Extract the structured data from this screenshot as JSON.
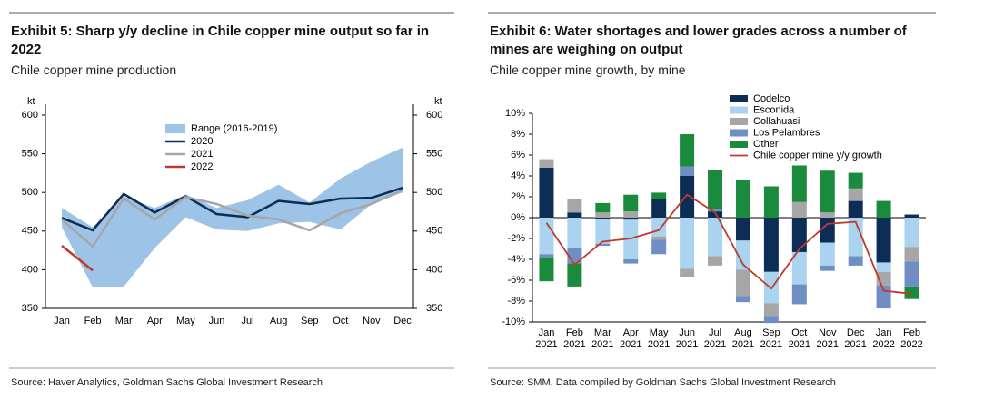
{
  "chart_data": [
    {
      "type": "line",
      "title": "Exhibit 5: Sharp y/y decline in Chile copper mine output so far in 2022",
      "subtitle": "Chile copper mine production",
      "source": "Source: Haver Analytics, Goldman Sachs Global Investment Research",
      "ylabel": "kt",
      "y2label": "kt",
      "categories": [
        "Jan",
        "Feb",
        "Mar",
        "Apr",
        "May",
        "Jun",
        "Jul",
        "Aug",
        "Sep",
        "Oct",
        "Nov",
        "Dec"
      ],
      "ylim": [
        350,
        600
      ],
      "yticks": [
        350,
        400,
        450,
        500,
        550,
        600
      ],
      "y2lim": [
        350,
        600
      ],
      "y2ticks": [
        350,
        400,
        450,
        500,
        550,
        600
      ],
      "range": {
        "name": "Range (2016-2019)",
        "color": "#9dc3e6",
        "high": [
          480,
          455,
          495,
          480,
          497,
          480,
          490,
          510,
          487,
          518,
          540,
          558
        ],
        "low": [
          455,
          377,
          378,
          428,
          468,
          452,
          450,
          460,
          462,
          452,
          485,
          500
        ]
      },
      "series": [
        {
          "name": "2020",
          "color": "#0b2d56",
          "values": [
            467,
            451,
            498,
            474,
            495,
            472,
            468,
            489,
            485,
            492,
            493,
            506
          ]
        },
        {
          "name": "2021",
          "color": "#a6a6a6",
          "values": [
            465,
            430,
            492,
            465,
            494,
            485,
            470,
            465,
            451,
            473,
            485,
            503
          ]
        },
        {
          "name": "2022",
          "color": "#c0392b",
          "values": [
            431,
            399,
            null,
            null,
            null,
            null,
            null,
            null,
            null,
            null,
            null,
            null
          ]
        }
      ]
    },
    {
      "type": "bar",
      "stacked": true,
      "title": "Exhibit 6: Water shortages and lower grades across a number of mines are weighing on output",
      "subtitle": "Chile copper mine growth, by mine",
      "source": "Source: SMM, Data compiled by Goldman Sachs Global Investment Research",
      "categories": [
        "Jan 2021",
        "Feb 2021",
        "Mar 2021",
        "Apr 2021",
        "May 2021",
        "Jun 2021",
        "Jul 2021",
        "Aug 2021",
        "Sep 2021",
        "Oct 2021",
        "Nov 2021",
        "Dec 2021",
        "Jan 2022",
        "Feb 2022"
      ],
      "ylim": [
        -10,
        10
      ],
      "yticks": [
        {
          "value": -10,
          "label": "-10%"
        },
        {
          "value": -8,
          "label": "-8%"
        },
        {
          "value": -6,
          "label": "-6%"
        },
        {
          "value": -4,
          "label": "-4%"
        },
        {
          "value": -2,
          "label": "-2%"
        },
        {
          "value": 0,
          "label": "0%"
        },
        {
          "value": 2,
          "label": "2%"
        },
        {
          "value": 4,
          "label": "4%"
        },
        {
          "value": 6,
          "label": "6%"
        },
        {
          "value": 8,
          "label": "8%"
        },
        {
          "value": 10,
          "label": "10%"
        }
      ],
      "series": [
        {
          "name": "Codelco",
          "color": "#0b2d56",
          "values": [
            4.8,
            0.5,
            -0.1,
            -0.2,
            1.8,
            4.0,
            0.6,
            -2.2,
            -5.2,
            -3.3,
            -2.4,
            1.6,
            -4.3,
            0.3
          ]
        },
        {
          "name": "Esconida",
          "color": "#a9d3ef",
          "values": [
            -3.5,
            -2.9,
            -2.4,
            -3.8,
            -1.8,
            -4.9,
            -3.7,
            -2.8,
            -3.0,
            -3.1,
            -2.2,
            -3.7,
            -0.9,
            -2.8
          ]
        },
        {
          "name": "Collahuasi",
          "color": "#a6a6a6",
          "values": [
            0.8,
            1.3,
            0.5,
            0.6,
            -0.3,
            -0.8,
            -0.9,
            -2.5,
            -1.3,
            1.5,
            0.5,
            1.2,
            -1.3,
            -1.4
          ]
        },
        {
          "name": "Los Pelambres",
          "color": "#6f8fc4",
          "values": [
            -0.3,
            -1.5,
            -0.2,
            -0.4,
            -1.4,
            0.9,
            0.2,
            -0.6,
            -0.6,
            -1.9,
            -0.5,
            -0.9,
            -2.2,
            -2.4
          ]
        },
        {
          "name": "Other",
          "color": "#1a8a3c",
          "values": [
            -2.3,
            -2.2,
            0.9,
            1.6,
            0.6,
            3.1,
            3.8,
            3.6,
            3.0,
            3.5,
            4.0,
            1.5,
            1.6,
            -1.2
          ]
        }
      ],
      "line": {
        "name": "Chile copper mine y/y growth",
        "color": "#c0392b",
        "values": [
          -0.5,
          -4.5,
          -2.3,
          -2.0,
          -1.2,
          2.2,
          0.5,
          -4.5,
          -6.8,
          -3.0,
          -0.6,
          -0.4,
          -7.0,
          -7.3
        ]
      }
    }
  ]
}
